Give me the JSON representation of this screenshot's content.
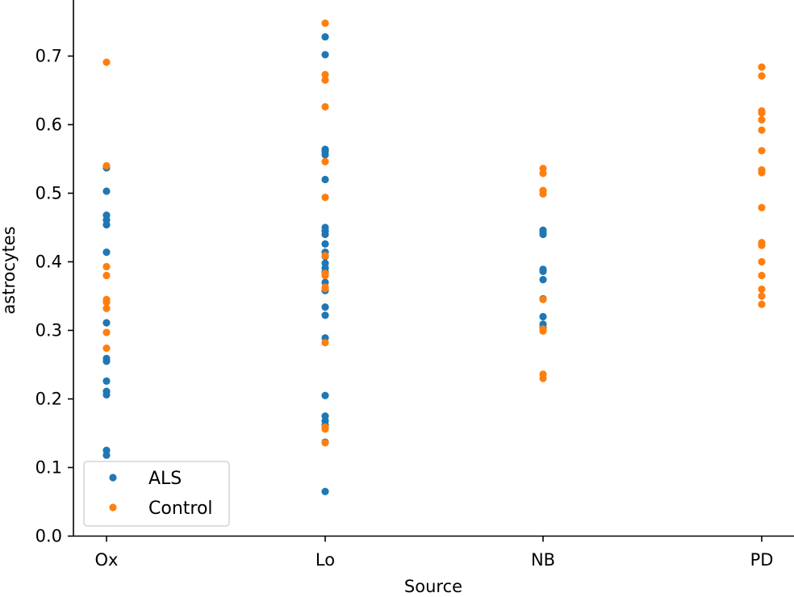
{
  "chart_data": {
    "type": "scatter",
    "xlabel": "Source",
    "ylabel": "astrocytes",
    "categories": [
      "Ox",
      "Lo",
      "NB",
      "PD"
    ],
    "ylim": [
      0.0,
      0.78
    ],
    "yticks": [
      "0.0",
      "0.1",
      "0.2",
      "0.3",
      "0.4",
      "0.5",
      "0.6",
      "0.7"
    ],
    "legend_position": "lower-left",
    "series": [
      {
        "name": "ALS",
        "color": "#1f77b4",
        "points": [
          [
            "Ox",
            0.537
          ],
          [
            "Ox",
            0.503
          ],
          [
            "Ox",
            0.468
          ],
          [
            "Ox",
            0.461
          ],
          [
            "Ox",
            0.454
          ],
          [
            "Ox",
            0.414
          ],
          [
            "Ox",
            0.311
          ],
          [
            "Ox",
            0.259
          ],
          [
            "Ox",
            0.255
          ],
          [
            "Ox",
            0.226
          ],
          [
            "Ox",
            0.211
          ],
          [
            "Ox",
            0.206
          ],
          [
            "Ox",
            0.125
          ],
          [
            "Ox",
            0.118
          ],
          [
            "Lo",
            0.728
          ],
          [
            "Lo",
            0.702
          ],
          [
            "Lo",
            0.564
          ],
          [
            "Lo",
            0.561
          ],
          [
            "Lo",
            0.556
          ],
          [
            "Lo",
            0.52
          ],
          [
            "Lo",
            0.45
          ],
          [
            "Lo",
            0.445
          ],
          [
            "Lo",
            0.44
          ],
          [
            "Lo",
            0.426
          ],
          [
            "Lo",
            0.414
          ],
          [
            "Lo",
            0.408
          ],
          [
            "Lo",
            0.398
          ],
          [
            "Lo",
            0.391
          ],
          [
            "Lo",
            0.385
          ],
          [
            "Lo",
            0.37
          ],
          [
            "Lo",
            0.358
          ],
          [
            "Lo",
            0.334
          ],
          [
            "Lo",
            0.322
          ],
          [
            "Lo",
            0.289
          ],
          [
            "Lo",
            0.205
          ],
          [
            "Lo",
            0.175
          ],
          [
            "Lo",
            0.168
          ],
          [
            "Lo",
            0.162
          ],
          [
            "Lo",
            0.137
          ],
          [
            "Lo",
            0.065
          ],
          [
            "NB",
            0.446
          ],
          [
            "NB",
            0.443
          ],
          [
            "NB",
            0.44
          ],
          [
            "NB",
            0.389
          ],
          [
            "NB",
            0.386
          ],
          [
            "NB",
            0.374
          ],
          [
            "NB",
            0.346
          ],
          [
            "NB",
            0.32
          ],
          [
            "NB",
            0.309
          ],
          [
            "NB",
            0.304
          ]
        ]
      },
      {
        "name": "Control",
        "color": "#ff7f0e",
        "points": [
          [
            "Ox",
            0.691
          ],
          [
            "Ox",
            0.54
          ],
          [
            "Ox",
            0.393
          ],
          [
            "Ox",
            0.38
          ],
          [
            "Ox",
            0.345
          ],
          [
            "Ox",
            0.341
          ],
          [
            "Ox",
            0.332
          ],
          [
            "Ox",
            0.297
          ],
          [
            "Ox",
            0.274
          ],
          [
            "Lo",
            0.748
          ],
          [
            "Lo",
            0.673
          ],
          [
            "Lo",
            0.665
          ],
          [
            "Lo",
            0.626
          ],
          [
            "Lo",
            0.546
          ],
          [
            "Lo",
            0.494
          ],
          [
            "Lo",
            0.409
          ],
          [
            "Lo",
            0.383
          ],
          [
            "Lo",
            0.38
          ],
          [
            "Lo",
            0.363
          ],
          [
            "Lo",
            0.361
          ],
          [
            "Lo",
            0.282
          ],
          [
            "Lo",
            0.159
          ],
          [
            "Lo",
            0.156
          ],
          [
            "Lo",
            0.136
          ],
          [
            "NB",
            0.536
          ],
          [
            "NB",
            0.529
          ],
          [
            "NB",
            0.504
          ],
          [
            "NB",
            0.499
          ],
          [
            "NB",
            0.345
          ],
          [
            "NB",
            0.302
          ],
          [
            "NB",
            0.299
          ],
          [
            "NB",
            0.236
          ],
          [
            "NB",
            0.23
          ],
          [
            "PD",
            0.684
          ],
          [
            "PD",
            0.671
          ],
          [
            "PD",
            0.62
          ],
          [
            "PD",
            0.617
          ],
          [
            "PD",
            0.607
          ],
          [
            "PD",
            0.592
          ],
          [
            "PD",
            0.562
          ],
          [
            "PD",
            0.534
          ],
          [
            "PD",
            0.53
          ],
          [
            "PD",
            0.479
          ],
          [
            "PD",
            0.428
          ],
          [
            "PD",
            0.424
          ],
          [
            "PD",
            0.4
          ],
          [
            "PD",
            0.38
          ],
          [
            "PD",
            0.36
          ],
          [
            "PD",
            0.35
          ],
          [
            "PD",
            0.338
          ]
        ]
      }
    ]
  }
}
